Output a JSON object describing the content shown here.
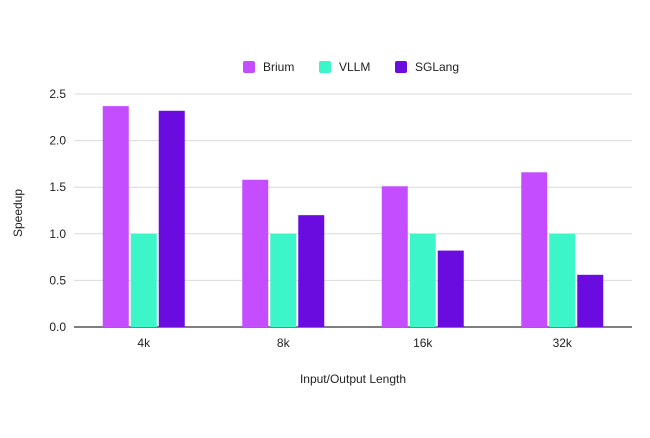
{
  "chart_data": {
    "type": "bar",
    "categories": [
      "4k",
      "8k",
      "16k",
      "32k"
    ],
    "series": [
      {
        "name": "Brium",
        "color": "#c44dff",
        "values": [
          2.37,
          1.58,
          1.51,
          1.66
        ]
      },
      {
        "name": "VLLM",
        "color": "#3cf5c9",
        "values": [
          1.0,
          1.0,
          1.0,
          1.0
        ]
      },
      {
        "name": "SGLang",
        "color": "#6a0be0",
        "values": [
          2.32,
          1.2,
          0.82,
          0.56
        ]
      }
    ],
    "xlabel": "Input/Output Length",
    "ylabel": "Speedup",
    "ylim": [
      0,
      2.5
    ],
    "yticks": [
      "0.0",
      "0.5",
      "1.0",
      "1.5",
      "2.0",
      "2.5"
    ],
    "grid": true,
    "legend_position": "top-center"
  }
}
